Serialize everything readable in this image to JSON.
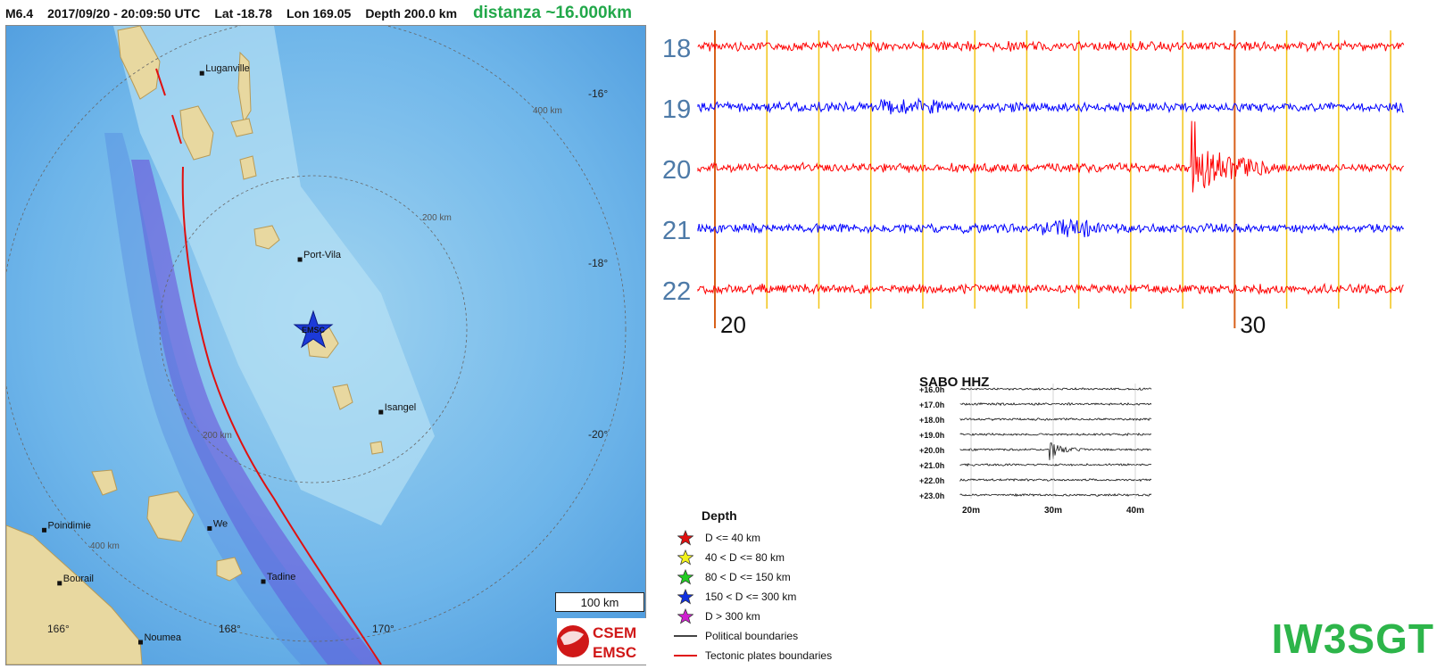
{
  "header": {
    "magnitude": "M6.4",
    "datetime": "2017/09/20 - 20:09:50 UTC",
    "lat": "Lat -18.78",
    "lon": "Lon 169.05",
    "depth": "Depth 200.0 km",
    "distance": "distanza ~16.000km"
  },
  "map": {
    "places": [
      {
        "name": "Luganville",
        "lon": 167.17,
        "lat": -15.52
      },
      {
        "name": "Port-Vila",
        "lon": 168.32,
        "lat": -17.73
      },
      {
        "name": "Isangel",
        "lon": 169.27,
        "lat": -19.54
      },
      {
        "name": "We",
        "lon": 167.26,
        "lat": -20.92
      },
      {
        "name": "Tadine",
        "lon": 167.89,
        "lat": -21.55
      },
      {
        "name": "Poindimie",
        "lon": 165.32,
        "lat": -20.94
      },
      {
        "name": "Bourail",
        "lon": 165.5,
        "lat": -21.57
      },
      {
        "name": "Noumea",
        "lon": 166.45,
        "lat": -22.27
      }
    ],
    "lat_ticks": [
      "-16°",
      "-18°",
      "-20°"
    ],
    "lon_ticks": [
      "166°",
      "168°",
      "170°"
    ],
    "ring_labels": [
      "200 km",
      "400 km",
      "200 km",
      "400 km"
    ],
    "epicenter_label": "EMSC",
    "scale_label": "100 km",
    "logo_top": "CSEM",
    "logo_bottom": "EMSC"
  },
  "helicorder": {
    "hours": [
      "18",
      "19",
      "20",
      "21",
      "22"
    ],
    "minute_labels": [
      "20",
      "30"
    ],
    "colors": [
      "#ff0000",
      "#0000ff",
      "#ff0000",
      "#0000ff",
      "#ff0000"
    ]
  },
  "mini": {
    "title": "SABO HHZ",
    "rows": [
      "+16.0h",
      "+17.0h",
      "+18.0h",
      "+19.0h",
      "+20.0h",
      "+21.0h",
      "+22.0h",
      "+23.0h"
    ],
    "x_labels": [
      "20m",
      "30m",
      "40m"
    ]
  },
  "legend": {
    "title": "Depth",
    "depth_items": [
      {
        "label": "D <= 40 km",
        "color": "#e01010"
      },
      {
        "label": "40 < D <= 80 km",
        "color": "#f2f21a"
      },
      {
        "label": "80 < D <= 150 km",
        "color": "#22cc22"
      },
      {
        "label": "150 < D <= 300 km",
        "color": "#1030e0"
      },
      {
        "label": "D > 300 km",
        "color": "#d020d0"
      }
    ],
    "line_items": [
      {
        "label": "Political boundaries",
        "color": "#444444"
      },
      {
        "label": "Tectonic plates boundaries",
        "color": "#e01010"
      }
    ]
  },
  "callsign": "IW3SGT"
}
